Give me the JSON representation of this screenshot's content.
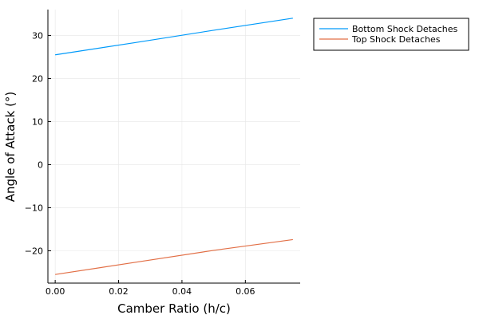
{
  "chart_data": {
    "type": "line",
    "title": "",
    "xlabel": "Camber Ratio (h/c)",
    "ylabel": "Angle of Attack (°)",
    "xlim": [
      -0.0023,
      0.0773
    ],
    "ylim": [
      -27.5,
      36.0
    ],
    "xticks": [
      0.0,
      0.02,
      0.04,
      0.06
    ],
    "xtick_labels": [
      "0.00",
      "0.02",
      "0.04",
      "0.06"
    ],
    "yticks": [
      -20,
      -10,
      0,
      10,
      20,
      30
    ],
    "ytick_labels": [
      "−20",
      "−10",
      "0",
      "10",
      "20",
      "30"
    ],
    "grid": true,
    "legend_position": "outside-top-right",
    "series": [
      {
        "name": "Bottom Shock Detaches",
        "color": "#009AFA",
        "x": [
          0.0,
          0.025,
          0.05,
          0.075
        ],
        "y": [
          25.5,
          28.3,
          31.2,
          34.0
        ]
      },
      {
        "name": "Top Shock Detaches",
        "color": "#E26F46",
        "x": [
          0.0,
          0.025,
          0.05,
          0.075
        ],
        "y": [
          -25.5,
          -22.7,
          -19.9,
          -17.4
        ]
      }
    ]
  }
}
